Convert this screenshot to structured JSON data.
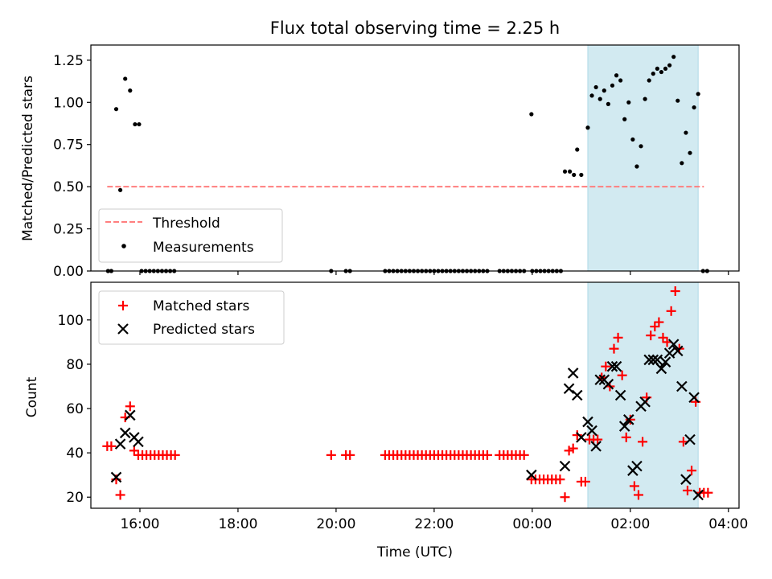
{
  "chart_data": [
    {
      "type": "scatter",
      "title": "Flux total observing time = 2.25 h",
      "xlabel": "",
      "ylabel": "Matched/Predicted stars",
      "ylim": [
        0,
        1.34
      ],
      "x_is_time": true,
      "xlim": [
        "15:00",
        "04:13"
      ],
      "xticks": [
        "16:00",
        "18:00",
        "20:00",
        "22:00",
        "00:00",
        "02:00",
        "04:00"
      ],
      "yticks": [
        "0.00",
        "0.25",
        "0.50",
        "0.75",
        "1.00",
        "1.25"
      ],
      "highlight_span": [
        "01:08",
        "03:23"
      ],
      "highlight_color": "#add8e6",
      "legend_position": "lower-left",
      "threshold": {
        "name": "Threshold",
        "value": 0.5,
        "from": "15:20",
        "to": "03:30",
        "color": "#ff7f7f"
      },
      "series": [
        {
          "name": "Measurements",
          "color": "#000000",
          "points": [
            [
              "15:21",
              0
            ],
            [
              "15:25",
              0
            ],
            [
              "15:31",
              0.96
            ],
            [
              "15:36",
              0.48
            ],
            [
              "15:42",
              1.14
            ],
            [
              "15:48",
              1.07
            ],
            [
              "15:54",
              0.87
            ],
            [
              "15:59",
              0.87
            ],
            [
              "16:02",
              0
            ],
            [
              "16:07",
              0
            ],
            [
              "16:12",
              0
            ],
            [
              "16:17",
              0
            ],
            [
              "16:22",
              0
            ],
            [
              "16:27",
              0
            ],
            [
              "16:32",
              0
            ],
            [
              "16:37",
              0
            ],
            [
              "16:42",
              0
            ],
            [
              "19:54",
              0
            ],
            [
              "20:12",
              0
            ],
            [
              "20:17",
              0
            ],
            [
              "21:00",
              0
            ],
            [
              "21:05",
              0
            ],
            [
              "21:10",
              0
            ],
            [
              "21:15",
              0
            ],
            [
              "21:20",
              0
            ],
            [
              "21:25",
              0
            ],
            [
              "21:30",
              0
            ],
            [
              "21:35",
              0
            ],
            [
              "21:40",
              0
            ],
            [
              "21:45",
              0
            ],
            [
              "21:50",
              0
            ],
            [
              "21:55",
              0
            ],
            [
              "22:00",
              0
            ],
            [
              "22:05",
              0
            ],
            [
              "22:10",
              0
            ],
            [
              "22:15",
              0
            ],
            [
              "22:20",
              0
            ],
            [
              "22:25",
              0
            ],
            [
              "22:30",
              0
            ],
            [
              "22:35",
              0
            ],
            [
              "22:40",
              0
            ],
            [
              "22:45",
              0
            ],
            [
              "22:50",
              0
            ],
            [
              "22:55",
              0
            ],
            [
              "23:00",
              0
            ],
            [
              "23:05",
              0
            ],
            [
              "23:20",
              0
            ],
            [
              "23:25",
              0
            ],
            [
              "23:30",
              0
            ],
            [
              "23:35",
              0
            ],
            [
              "23:40",
              0
            ],
            [
              "23:45",
              0
            ],
            [
              "23:50",
              0
            ],
            [
              "23:59",
              0.93
            ],
            [
              "00:00",
              0
            ],
            [
              "00:05",
              0
            ],
            [
              "00:10",
              0
            ],
            [
              "00:15",
              0
            ],
            [
              "00:20",
              0
            ],
            [
              "00:25",
              0
            ],
            [
              "00:30",
              0
            ],
            [
              "00:35",
              0
            ],
            [
              "00:40",
              0.59
            ],
            [
              "00:46",
              0.59
            ],
            [
              "00:51",
              0.57
            ],
            [
              "00:55",
              0.72
            ],
            [
              "01:00",
              0.57
            ],
            [
              "01:08",
              0.85
            ],
            [
              "01:13",
              1.04
            ],
            [
              "01:18",
              1.09
            ],
            [
              "01:23",
              1.02
            ],
            [
              "01:28",
              1.07
            ],
            [
              "01:33",
              0.99
            ],
            [
              "01:38",
              1.1
            ],
            [
              "01:43",
              1.16
            ],
            [
              "01:48",
              1.13
            ],
            [
              "01:53",
              0.9
            ],
            [
              "01:58",
              1.0
            ],
            [
              "02:03",
              0.78
            ],
            [
              "02:08",
              0.62
            ],
            [
              "02:13",
              0.74
            ],
            [
              "02:18",
              1.02
            ],
            [
              "02:23",
              1.13
            ],
            [
              "02:28",
              1.17
            ],
            [
              "02:33",
              1.2
            ],
            [
              "02:38",
              1.18
            ],
            [
              "02:43",
              1.2
            ],
            [
              "02:48",
              1.22
            ],
            [
              "02:53",
              1.27
            ],
            [
              "02:58",
              1.01
            ],
            [
              "03:03",
              0.64
            ],
            [
              "03:08",
              0.82
            ],
            [
              "03:13",
              0.7
            ],
            [
              "03:18",
              0.97
            ],
            [
              "03:23",
              1.05
            ],
            [
              "03:29",
              0
            ],
            [
              "03:34",
              0
            ]
          ]
        }
      ],
      "legend": [
        "Threshold",
        "Measurements"
      ]
    },
    {
      "type": "scatter",
      "title": "",
      "xlabel": "Time (UTC)",
      "ylabel": "Count",
      "ylim": [
        15,
        117
      ],
      "x_is_time": true,
      "xlim": [
        "15:00",
        "04:13"
      ],
      "xticks": [
        "16:00",
        "18:00",
        "20:00",
        "22:00",
        "00:00",
        "02:00",
        "04:00"
      ],
      "yticks": [
        "20",
        "40",
        "60",
        "80",
        "100"
      ],
      "highlight_span": [
        "01:08",
        "03:23"
      ],
      "highlight_color": "#add8e6",
      "legend_position": "upper-left",
      "series": [
        {
          "name": "Matched stars",
          "marker": "plus",
          "color": "#ff0000",
          "points": [
            [
              "15:20",
              43
            ],
            [
              "15:25",
              43
            ],
            [
              "15:31",
              28
            ],
            [
              "15:36",
              21
            ],
            [
              "15:42",
              56
            ],
            [
              "15:48",
              61
            ],
            [
              "15:53",
              41
            ],
            [
              "15:58",
              39
            ],
            [
              "16:03",
              39
            ],
            [
              "16:08",
              39
            ],
            [
              "16:13",
              39
            ],
            [
              "16:18",
              39
            ],
            [
              "16:23",
              39
            ],
            [
              "16:28",
              39
            ],
            [
              "16:33",
              39
            ],
            [
              "16:38",
              39
            ],
            [
              "16:43",
              39
            ],
            [
              "19:54",
              39
            ],
            [
              "20:12",
              39
            ],
            [
              "20:17",
              39
            ],
            [
              "21:00",
              39
            ],
            [
              "21:05",
              39
            ],
            [
              "21:10",
              39
            ],
            [
              "21:15",
              39
            ],
            [
              "21:20",
              39
            ],
            [
              "21:25",
              39
            ],
            [
              "21:30",
              39
            ],
            [
              "21:35",
              39
            ],
            [
              "21:40",
              39
            ],
            [
              "21:45",
              39
            ],
            [
              "21:50",
              39
            ],
            [
              "21:55",
              39
            ],
            [
              "22:00",
              39
            ],
            [
              "22:05",
              39
            ],
            [
              "22:10",
              39
            ],
            [
              "22:15",
              39
            ],
            [
              "22:20",
              39
            ],
            [
              "22:25",
              39
            ],
            [
              "22:30",
              39
            ],
            [
              "22:35",
              39
            ],
            [
              "22:40",
              39
            ],
            [
              "22:45",
              39
            ],
            [
              "22:50",
              39
            ],
            [
              "22:55",
              39
            ],
            [
              "23:00",
              39
            ],
            [
              "23:05",
              39
            ],
            [
              "23:20",
              39
            ],
            [
              "23:25",
              39
            ],
            [
              "23:30",
              39
            ],
            [
              "23:35",
              39
            ],
            [
              "23:40",
              39
            ],
            [
              "23:45",
              39
            ],
            [
              "23:50",
              39
            ],
            [
              "23:59",
              28
            ],
            [
              "00:04",
              28
            ],
            [
              "00:09",
              28
            ],
            [
              "00:14",
              28
            ],
            [
              "00:19",
              28
            ],
            [
              "00:24",
              28
            ],
            [
              "00:29",
              28
            ],
            [
              "00:34",
              28
            ],
            [
              "00:40",
              20
            ],
            [
              "00:45",
              41
            ],
            [
              "00:50",
              42
            ],
            [
              "00:55",
              48
            ],
            [
              "01:00",
              27
            ],
            [
              "01:05",
              27
            ],
            [
              "01:10",
              46
            ],
            [
              "01:15",
              46
            ],
            [
              "01:20",
              46
            ],
            [
              "01:25",
              74
            ],
            [
              "01:30",
              79
            ],
            [
              "01:35",
              70
            ],
            [
              "01:40",
              87
            ],
            [
              "01:45",
              92
            ],
            [
              "01:50",
              75
            ],
            [
              "01:55",
              47
            ],
            [
              "02:00",
              55
            ],
            [
              "02:05",
              25
            ],
            [
              "02:10",
              21
            ],
            [
              "02:15",
              45
            ],
            [
              "02:20",
              65
            ],
            [
              "02:25",
              93
            ],
            [
              "02:30",
              97
            ],
            [
              "02:35",
              99
            ],
            [
              "02:40",
              92
            ],
            [
              "02:45",
              90
            ],
            [
              "02:50",
              104
            ],
            [
              "02:55",
              113
            ],
            [
              "03:00",
              87
            ],
            [
              "03:05",
              45
            ],
            [
              "03:10",
              23
            ],
            [
              "03:15",
              32
            ],
            [
              "03:20",
              63
            ],
            [
              "03:25",
              22
            ],
            [
              "03:30",
              22
            ],
            [
              "03:35",
              22
            ]
          ]
        },
        {
          "name": "Predicted stars",
          "marker": "x",
          "color": "#000000",
          "points": [
            [
              "15:31",
              29
            ],
            [
              "15:36",
              44
            ],
            [
              "15:42",
              49
            ],
            [
              "15:48",
              57
            ],
            [
              "15:53",
              47
            ],
            [
              "15:58",
              45
            ],
            [
              "23:59",
              30
            ],
            [
              "00:40",
              34
            ],
            [
              "00:45",
              69
            ],
            [
              "00:50",
              76
            ],
            [
              "00:55",
              66
            ],
            [
              "01:00",
              47
            ],
            [
              "01:08",
              54
            ],
            [
              "01:13",
              50
            ],
            [
              "01:18",
              43
            ],
            [
              "01:23",
              73
            ],
            [
              "01:28",
              73
            ],
            [
              "01:33",
              71
            ],
            [
              "01:38",
              79
            ],
            [
              "01:43",
              79
            ],
            [
              "01:48",
              66
            ],
            [
              "01:53",
              52
            ],
            [
              "01:58",
              55
            ],
            [
              "02:03",
              32
            ],
            [
              "02:08",
              34
            ],
            [
              "02:13",
              61
            ],
            [
              "02:18",
              63
            ],
            [
              "02:23",
              82
            ],
            [
              "02:28",
              82
            ],
            [
              "02:33",
              82
            ],
            [
              "02:38",
              78
            ],
            [
              "02:43",
              81
            ],
            [
              "02:48",
              85
            ],
            [
              "02:53",
              89
            ],
            [
              "02:58",
              86
            ],
            [
              "03:03",
              70
            ],
            [
              "03:08",
              28
            ],
            [
              "03:13",
              46
            ],
            [
              "03:18",
              65
            ],
            [
              "03:23",
              21
            ]
          ]
        }
      ],
      "legend": [
        "Matched stars",
        "Predicted stars"
      ]
    }
  ]
}
